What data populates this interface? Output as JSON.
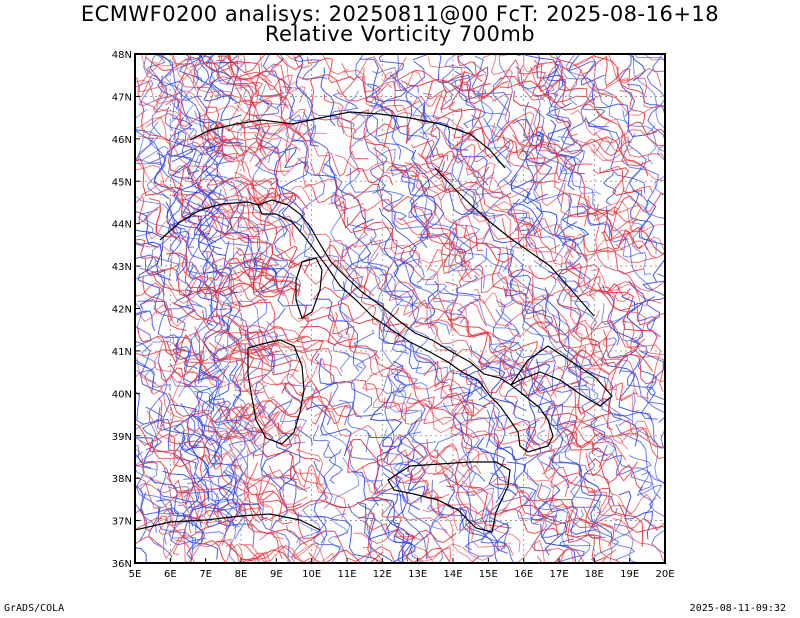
{
  "title_line1": "ECMWF0200 analisys: 20250811@00 FcT: 2025-08-16+18",
  "title_line2": "Relative Vorticity 700mb",
  "footer_left": "GrADS/COLA",
  "footer_right": "2025-08-11-09:32",
  "map": {
    "lon_range": [
      5,
      20
    ],
    "lat_range": [
      36,
      48
    ],
    "lon_ticks": [
      "5E",
      "6E",
      "7E",
      "8E",
      "9E",
      "10E",
      "11E",
      "12E",
      "13E",
      "14E",
      "15E",
      "16E",
      "17E",
      "18E",
      "19E",
      "20E"
    ],
    "lat_ticks": [
      "36N",
      "37N",
      "38N",
      "39N",
      "40N",
      "41N",
      "42N",
      "43N",
      "44N",
      "45N",
      "46N",
      "47N",
      "48N"
    ],
    "colors": {
      "positive": "#e8303a",
      "negative": "#2a44e8",
      "coast": "#000000",
      "grid": "#8c8c8c"
    }
  }
}
